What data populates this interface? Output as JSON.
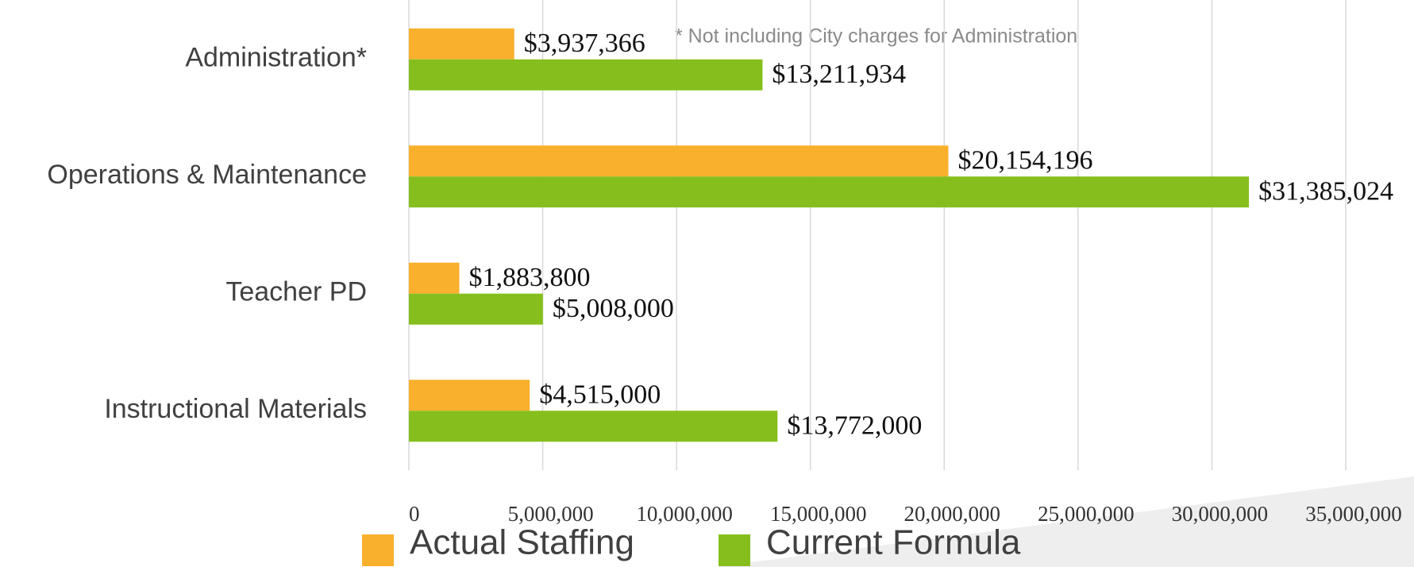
{
  "chart_data": {
    "type": "barh",
    "categories": [
      "Administration*",
      "Operations & Maintenance",
      "Teacher PD",
      "Instructional Materials"
    ],
    "series": [
      {
        "name": "Actual Staffing",
        "color": "#f9b02c",
        "values": [
          3937366,
          20154196,
          1883800,
          4515000
        ],
        "value_labels": [
          "$3,937,366",
          "$20,154,196",
          "$1,883,800",
          "$4,515,000"
        ]
      },
      {
        "name": "Current Formula",
        "color": "#86bf1d",
        "values": [
          13211934,
          31385024,
          5008000,
          13772000
        ],
        "value_labels": [
          "$13,211,934",
          "$31,385,024",
          "$5,008,000",
          "$13,772,000"
        ]
      }
    ],
    "annotation": "* Not including City charges for Administration",
    "xlim": [
      0,
      35000000
    ],
    "xticks": [
      0,
      {
        "value": 5000000,
        "label": "5,000,000"
      },
      {
        "value": 10000000,
        "label": "10,000,000"
      },
      {
        "value": 15000000,
        "label": "15,000,000"
      },
      {
        "value": 20000000,
        "label": "20,000,000"
      },
      {
        "value": 25000000,
        "label": "25,000,000"
      },
      {
        "value": 30000000,
        "label": "30,000,000"
      },
      {
        "value": 35000000,
        "label": "35,000,000"
      }
    ],
    "grid": true,
    "legend": "bottom"
  }
}
